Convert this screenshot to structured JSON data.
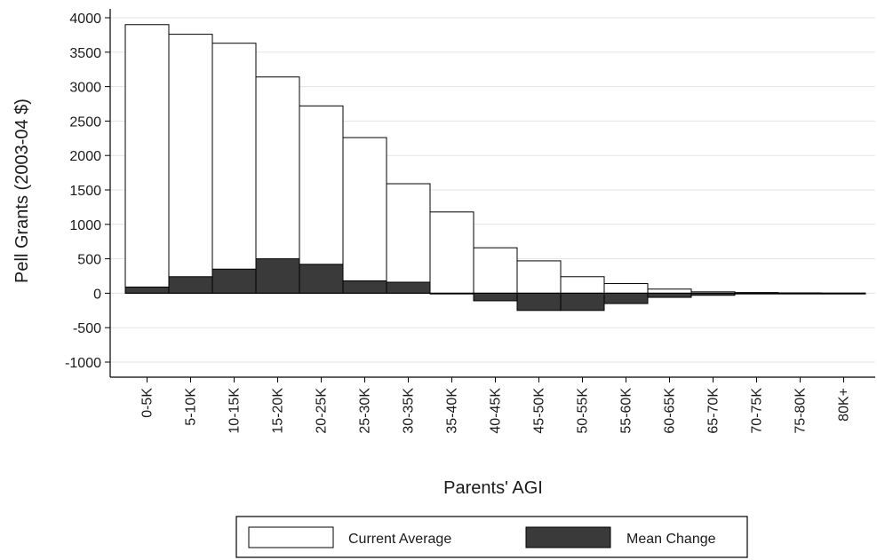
{
  "chart_data": {
    "type": "bar",
    "xlabel": "Parents' AGI",
    "ylabel": "Pell Grants (2003-04 $)",
    "ylim": [
      -1000,
      4000
    ],
    "yticks": [
      4000,
      3500,
      3000,
      2500,
      2000,
      1500,
      1000,
      500,
      0,
      -500,
      -1000
    ],
    "grid": true,
    "legend_position": "bottom",
    "categories": [
      "0-5K",
      "5-10K",
      "10-15K",
      "15-20K",
      "20-25K",
      "25-30K",
      "30-35K",
      "35-40K",
      "40-45K",
      "45-50K",
      "50-55K",
      "55-60K",
      "60-65K",
      "65-70K",
      "70-75K",
      "75-80K",
      "80K+"
    ],
    "series": [
      {
        "name": "Current Average",
        "color": "#ffffff",
        "values": [
          3900,
          3760,
          3630,
          3140,
          2720,
          2260,
          1590,
          1180,
          660,
          470,
          240,
          140,
          60,
          20,
          10,
          5,
          2
        ]
      },
      {
        "name": "Mean Change",
        "color": "#3a3a3a",
        "values": [
          90,
          240,
          350,
          500,
          420,
          180,
          160,
          -10,
          -110,
          -250,
          -250,
          -150,
          -60,
          -30,
          -10,
          -5,
          -2
        ]
      }
    ]
  }
}
